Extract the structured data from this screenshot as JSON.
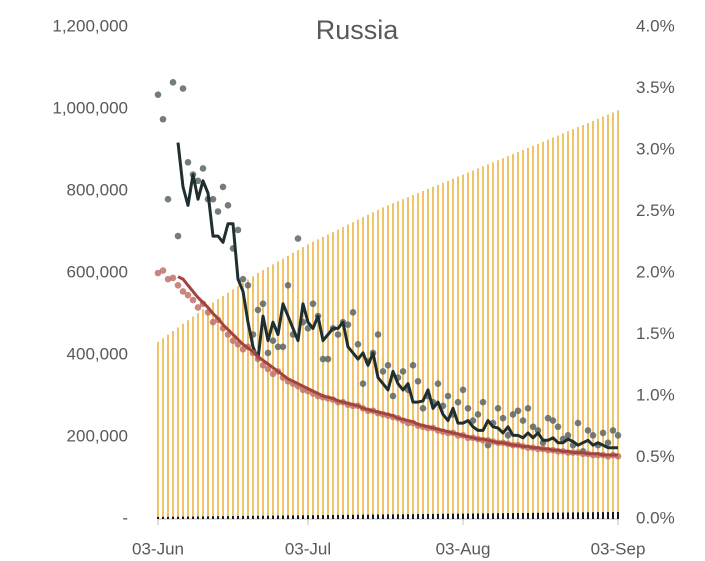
{
  "chart_data": {
    "type": "bar",
    "title": "Russia",
    "categories": [
      "03-Jun",
      null,
      null,
      null,
      null,
      null,
      null,
      null,
      null,
      null,
      null,
      null,
      null,
      null,
      null,
      null,
      null,
      null,
      null,
      null,
      null,
      null,
      null,
      null,
      null,
      null,
      null,
      null,
      null,
      null,
      "03-Jul",
      null,
      null,
      null,
      null,
      null,
      null,
      null,
      null,
      null,
      null,
      null,
      null,
      null,
      null,
      null,
      null,
      null,
      null,
      null,
      null,
      null,
      null,
      null,
      null,
      null,
      null,
      null,
      null,
      null,
      null,
      "03-Aug",
      null,
      null,
      null,
      null,
      null,
      null,
      null,
      null,
      null,
      null,
      null,
      null,
      null,
      null,
      null,
      null,
      null,
      null,
      null,
      null,
      null,
      null,
      null,
      null,
      null,
      null,
      null,
      null,
      null,
      null,
      "03-Sep"
    ],
    "ylim": [
      0,
      1200000
    ],
    "yticks": [
      {
        "value": 0,
        "label": "-"
      },
      {
        "value": 200000,
        "label": "200,000"
      },
      {
        "value": 400000,
        "label": "400,000"
      },
      {
        "value": 600000,
        "label": "600,000"
      },
      {
        "value": 800000,
        "label": "800,000"
      },
      {
        "value": 1000000,
        "label": "1,000,000"
      },
      {
        "value": 1200000,
        "label": "1,200,000"
      }
    ],
    "y2lim": [
      0,
      4
    ],
    "y2ticks": [
      {
        "value": 0,
        "label": "0.0%"
      },
      {
        "value": 0.5,
        "label": "0.5%"
      },
      {
        "value": 1,
        "label": "1.0%"
      },
      {
        "value": 1.5,
        "label": "1.5%"
      },
      {
        "value": 2,
        "label": "2.0%"
      },
      {
        "value": 2.5,
        "label": "2.5%"
      },
      {
        "value": 3,
        "label": "3.0%"
      },
      {
        "value": 3.5,
        "label": "3.5%"
      },
      {
        "value": 4,
        "label": "4.0%"
      }
    ],
    "series": [
      {
        "type": "bar",
        "color": "#f0c36a",
        "values": [
          432000,
          440800,
          449600,
          458400,
          467200,
          476000,
          484800,
          493600,
          502400,
          511200,
          520000,
          528000,
          536000,
          544000,
          552000,
          560000,
          568000,
          576000,
          584000,
          592000,
          600000,
          607000,
          614000,
          621000,
          628000,
          635000,
          642000,
          649000,
          656000,
          663000,
          670000,
          676000,
          682000,
          688000,
          694000,
          700000,
          706000,
          712000,
          718000,
          724000,
          730000,
          736000,
          742000,
          748000,
          754000,
          760000,
          765000,
          770000,
          775000,
          780000,
          785000,
          790000,
          795000,
          800000,
          805000,
          810000,
          815000,
          820000,
          825000,
          830000,
          835000,
          840000,
          845000,
          850000,
          855000,
          860000,
          865000,
          870000,
          875000,
          880000,
          885000,
          890000,
          895000,
          900000,
          905000,
          910000,
          915000,
          920100,
          925200,
          930300,
          935400,
          940500,
          945600,
          950700,
          955800,
          960900,
          966000,
          971100,
          976200,
          981300,
          986400,
          991500,
          996600
        ]
      },
      {
        "type": "bar",
        "color": "#1a1a1a",
        "values": [
          5200,
          5330,
          5460,
          5590,
          5720,
          5850,
          5980,
          6110,
          6240,
          6370,
          6500,
          6630,
          6760,
          6890,
          7020,
          7150,
          7280,
          7410,
          7540,
          7670,
          7800,
          7930,
          8060,
          8190,
          8320,
          8450,
          8580,
          8710,
          8840,
          8970,
          9100,
          9230,
          9360,
          9490,
          9620,
          9750,
          9880,
          10010,
          10140,
          10270,
          10400,
          10530,
          10660,
          10790,
          10920,
          11050,
          11180,
          11310,
          11440,
          11570,
          11700,
          11830,
          11960,
          12090,
          12220,
          12350,
          12480,
          12610,
          12740,
          12870,
          13000,
          13130,
          13260,
          13390,
          13520,
          13650,
          13780,
          13910,
          14040,
          14170,
          14300,
          14430,
          14560,
          14690,
          14820,
          14950,
          15080,
          15210,
          15340,
          15470,
          15600,
          15730,
          15860,
          15990,
          16120,
          16250,
          16380,
          16510,
          16640,
          16770,
          16900,
          17030,
          17160
        ]
      },
      {
        "type": "scatter",
        "axis": "y2",
        "color": "#5b6665",
        "values": [
          3.45,
          3.25,
          2.6,
          3.55,
          2.3,
          3.5,
          2.9,
          2.8,
          2.75,
          2.85,
          2.6,
          2.6,
          2.5,
          2.7,
          2.55,
          2.2,
          2.35,
          1.95,
          1.9,
          1.5,
          1.7,
          1.75,
          1.35,
          1.45,
          1.4,
          1.4,
          1.9,
          1.5,
          2.28,
          1.6,
          1.55,
          1.75,
          1.65,
          1.3,
          1.3,
          1.55,
          1.5,
          1.6,
          1.58,
          1.68,
          1.42,
          1.1,
          1.28,
          1.35,
          1.5,
          1.2,
          1.25,
          1.0,
          1.15,
          1.2,
          1.05,
          1.25,
          1.12,
          0.9,
          1.0,
          0.95,
          1.1,
          0.92,
          1.0,
          0.85,
          0.95,
          1.05,
          0.9,
          0.8,
          0.85,
          0.95,
          0.6,
          0.78,
          0.9,
          0.82,
          0.68,
          0.85,
          0.88,
          0.8,
          0.9,
          0.75,
          0.72,
          0.62,
          0.82,
          0.8,
          0.75,
          0.65,
          0.68,
          0.6,
          0.78,
          0.55,
          0.72,
          0.68,
          0.6,
          0.7,
          0.62,
          0.72,
          0.68
        ]
      },
      {
        "type": "line",
        "axis": "y2",
        "color": "#1f2e2e",
        "values": [
          null,
          null,
          null,
          null,
          3.06,
          2.7,
          2.55,
          2.8,
          2.6,
          2.75,
          2.65,
          2.3,
          2.3,
          2.25,
          2.4,
          2.4,
          1.95,
          1.85,
          1.6,
          1.4,
          1.3,
          1.65,
          1.45,
          1.6,
          1.5,
          1.75,
          1.65,
          1.55,
          1.45,
          1.75,
          1.6,
          1.55,
          1.65,
          1.45,
          1.5,
          1.55,
          1.55,
          1.6,
          1.4,
          1.35,
          1.3,
          1.35,
          1.25,
          1.35,
          1.15,
          1.1,
          1.05,
          1.2,
          1.1,
          1.05,
          1.1,
          0.95,
          0.95,
          0.96,
          1.05,
          0.9,
          0.95,
          0.85,
          0.8,
          0.9,
          0.78,
          0.78,
          0.8,
          0.75,
          0.72,
          0.72,
          0.8,
          0.75,
          0.74,
          0.7,
          0.75,
          0.68,
          0.68,
          0.66,
          0.7,
          0.66,
          0.7,
          0.64,
          0.64,
          0.66,
          0.62,
          0.62,
          0.65,
          0.63,
          0.6,
          0.62,
          0.64,
          0.6,
          0.62,
          0.6,
          0.58,
          0.58,
          0.58
        ]
      },
      {
        "type": "scatter",
        "axis": "y2",
        "color": "#c0726b",
        "values": [
          2.0,
          2.02,
          1.95,
          1.96,
          1.9,
          1.85,
          1.82,
          1.78,
          1.72,
          1.75,
          1.68,
          1.6,
          1.62,
          1.55,
          1.5,
          1.45,
          1.42,
          1.38,
          1.4,
          1.35,
          1.3,
          1.25,
          1.22,
          1.18,
          1.2,
          1.15,
          1.12,
          1.1,
          1.08,
          1.05,
          1.04,
          1.02,
          1.0,
          0.99,
          0.98,
          0.97,
          0.95,
          0.95,
          0.93,
          0.92,
          0.92,
          0.9,
          0.88,
          0.88,
          0.86,
          0.85,
          0.84,
          0.83,
          0.82,
          0.8,
          0.78,
          0.78,
          0.76,
          0.75,
          0.74,
          0.74,
          0.72,
          0.71,
          0.7,
          0.7,
          0.68,
          0.68,
          0.66,
          0.66,
          0.65,
          0.64,
          0.64,
          0.63,
          0.62,
          0.62,
          0.61,
          0.6,
          0.6,
          0.59,
          0.58,
          0.58,
          0.57,
          0.57,
          0.56,
          0.56,
          0.55,
          0.55,
          0.54,
          0.54,
          0.54,
          0.53,
          0.53,
          0.52,
          0.52,
          0.52,
          0.51,
          0.52,
          0.51
        ]
      },
      {
        "type": "line",
        "axis": "y2",
        "color": "#a3443c",
        "values": [
          null,
          null,
          null,
          null,
          1.97,
          1.95,
          1.9,
          1.85,
          1.8,
          1.76,
          1.72,
          1.67,
          1.63,
          1.58,
          1.54,
          1.5,
          1.46,
          1.42,
          1.39,
          1.36,
          1.32,
          1.29,
          1.26,
          1.23,
          1.2,
          1.17,
          1.14,
          1.12,
          1.1,
          1.08,
          1.06,
          1.04,
          1.02,
          1.0,
          0.99,
          0.98,
          0.96,
          0.95,
          0.94,
          0.93,
          0.92,
          0.9,
          0.89,
          0.88,
          0.87,
          0.86,
          0.85,
          0.84,
          0.82,
          0.81,
          0.8,
          0.79,
          0.77,
          0.76,
          0.75,
          0.74,
          0.73,
          0.72,
          0.71,
          0.7,
          0.69,
          0.68,
          0.67,
          0.66,
          0.65,
          0.65,
          0.64,
          0.63,
          0.62,
          0.62,
          0.61,
          0.6,
          0.6,
          0.59,
          0.59,
          0.58,
          0.58,
          0.57,
          0.57,
          0.56,
          0.56,
          0.55,
          0.55,
          0.54,
          0.54,
          0.54,
          0.53,
          0.53,
          0.53,
          0.52,
          0.52,
          0.52,
          0.52
        ]
      }
    ]
  }
}
